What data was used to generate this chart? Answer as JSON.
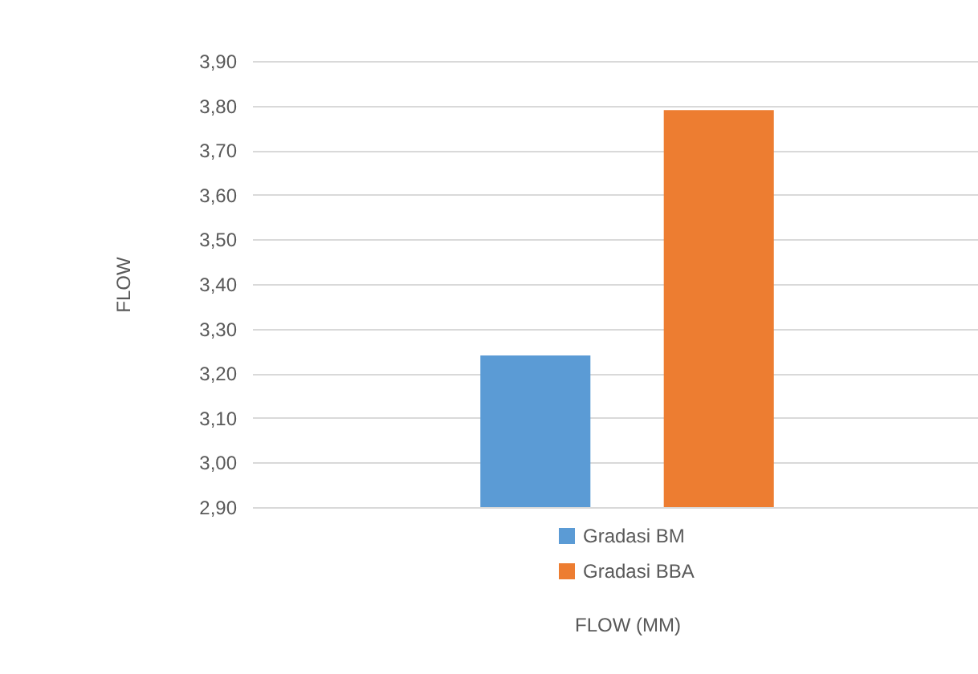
{
  "chart_data": {
    "type": "bar",
    "xlabel": "FLOW (MM)",
    "ylabel": "FLOW",
    "categories": [
      null
    ],
    "series": [
      {
        "name": "Gradasi BM",
        "color": "#5b9bd5",
        "values": [
          3.24
        ]
      },
      {
        "name": "Gradasi BBA",
        "color": "#ed7d31",
        "values": [
          3.79
        ]
      }
    ],
    "ylim": [
      2.9,
      3.9
    ],
    "yticks": [
      {
        "value": 2.9,
        "label": "2,90"
      },
      {
        "value": 3.0,
        "label": "3,00"
      },
      {
        "value": 3.1,
        "label": "3,10"
      },
      {
        "value": 3.2,
        "label": "3,20"
      },
      {
        "value": 3.3,
        "label": "3,30"
      },
      {
        "value": 3.4,
        "label": "3,40"
      },
      {
        "value": 3.5,
        "label": "3,50"
      },
      {
        "value": 3.6,
        "label": "3,60"
      },
      {
        "value": 3.7,
        "label": "3,70"
      },
      {
        "value": 3.8,
        "label": "3,80"
      },
      {
        "value": 3.9,
        "label": "3,90"
      }
    ],
    "grid": "y",
    "legend": "bottom"
  }
}
